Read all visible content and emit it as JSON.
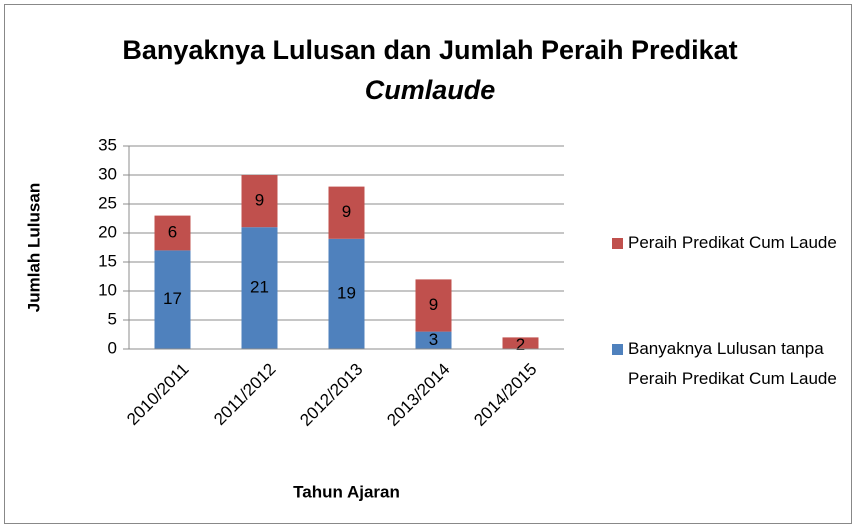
{
  "chart_data": {
    "type": "stacked_bar",
    "title": {
      "text": "Banyaknya Lulusan dan Jumlah Peraih Predikat",
      "italic": "Cumlaude"
    },
    "x_label": "Tahun Ajaran",
    "y_label": "Jumlah Lulusan",
    "categories": [
      "2010/2011",
      "2011/2012",
      "2012/2013",
      "2013/2014",
      "2014/2015"
    ],
    "series": [
      {
        "name": "Banyaknya Lulusan tanpa Peraih Predikat Cum Laude",
        "color": "#4f81bd",
        "values": [
          17,
          21,
          19,
          3,
          0
        ],
        "value_labels": [
          "17",
          "21",
          "19",
          "3",
          null
        ]
      },
      {
        "name": "Peraih Predikat Cum Laude",
        "color": "#c0504d",
        "values": [
          6,
          9,
          9,
          9,
          2
        ],
        "value_labels": [
          "6",
          "9",
          "9",
          "9",
          "2"
        ]
      }
    ],
    "ylim": [
      0,
      35
    ],
    "yticks": [
      0,
      5,
      10,
      15,
      20,
      25,
      30,
      35
    ],
    "grid": true,
    "legend": "right"
  }
}
